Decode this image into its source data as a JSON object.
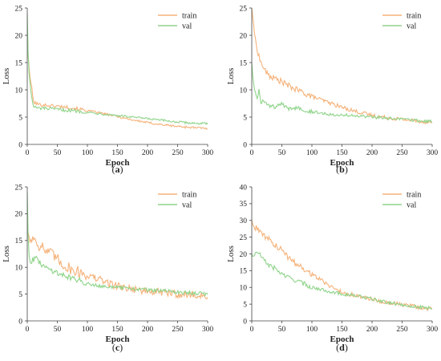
{
  "colors": {
    "train": "#f5b27a",
    "val": "#8fd48a",
    "axis": "#444444",
    "text": "#222222"
  },
  "chart_data": [
    {
      "type": "line",
      "caption": {
        "open": "(",
        "letter": "a",
        "close": ")"
      },
      "xlabel": "Epoch",
      "ylabel": "Loss",
      "xlim": [
        0,
        300
      ],
      "ylim": [
        0,
        25
      ],
      "xticks": [
        0,
        50,
        100,
        150,
        200,
        250,
        300
      ],
      "yticks": [
        0,
        5,
        10,
        15,
        20,
        25
      ],
      "grid": false,
      "legend_position": "top-right",
      "series": [
        {
          "name": "train",
          "x": [
            0,
            2,
            5,
            8,
            10,
            15,
            20,
            30,
            40,
            50,
            60,
            75,
            100,
            125,
            150,
            175,
            200,
            225,
            250,
            275,
            300
          ],
          "y": [
            21,
            15,
            12,
            10,
            7.8,
            7.5,
            7.3,
            7.2,
            7.1,
            7.0,
            6.9,
            6.7,
            6.2,
            5.7,
            5.1,
            4.5,
            4.0,
            3.6,
            3.3,
            3.1,
            2.9
          ]
        },
        {
          "name": "val",
          "x": [
            0,
            2,
            5,
            8,
            10,
            15,
            20,
            30,
            40,
            50,
            60,
            75,
            100,
            125,
            150,
            175,
            200,
            225,
            250,
            275,
            300
          ],
          "y": [
            24,
            14,
            11,
            8,
            7.0,
            6.7,
            6.6,
            6.6,
            6.5,
            6.4,
            6.3,
            6.2,
            5.9,
            5.6,
            5.3,
            5.0,
            4.7,
            4.4,
            4.1,
            3.9,
            3.8
          ]
        }
      ]
    },
    {
      "type": "line",
      "caption": {
        "open": "(",
        "letter": "b",
        "close": ")"
      },
      "xlabel": "Epoch",
      "ylabel": "Loss",
      "xlim": [
        0,
        300
      ],
      "ylim": [
        0,
        25
      ],
      "xticks": [
        0,
        50,
        100,
        150,
        200,
        250,
        300
      ],
      "yticks": [
        0,
        5,
        10,
        15,
        20,
        25
      ],
      "grid": false,
      "legend_position": "top-right",
      "series": [
        {
          "name": "train",
          "x": [
            0,
            3,
            6,
            10,
            15,
            20,
            25,
            30,
            40,
            50,
            60,
            75,
            100,
            125,
            150,
            175,
            200,
            225,
            250,
            275,
            300
          ],
          "y": [
            25,
            22,
            19,
            17,
            15,
            14,
            13,
            12.5,
            12,
            11.5,
            10.8,
            10,
            8.8,
            7.8,
            6.8,
            6.0,
            5.3,
            4.9,
            4.6,
            4.3,
            4.0
          ]
        },
        {
          "name": "val",
          "x": [
            0,
            2,
            4,
            6,
            8,
            10,
            12,
            15,
            20,
            25,
            30,
            40,
            50,
            60,
            75,
            100,
            125,
            150,
            175,
            200,
            225,
            250,
            275,
            300
          ],
          "y": [
            15,
            12,
            10.5,
            9.5,
            8.8,
            8.3,
            10.5,
            7.8,
            8.0,
            7.2,
            7.0,
            6.8,
            7.5,
            6.4,
            6.8,
            6.0,
            5.6,
            5.4,
            5.2,
            5.0,
            4.8,
            4.6,
            4.4,
            4.2
          ]
        }
      ]
    },
    {
      "type": "line",
      "caption": {
        "open": "(",
        "letter": "c",
        "close": ")"
      },
      "xlabel": "Epoch",
      "ylabel": "Loss",
      "xlim": [
        0,
        300
      ],
      "ylim": [
        0,
        25
      ],
      "xticks": [
        0,
        50,
        100,
        150,
        200,
        250,
        300
      ],
      "yticks": [
        0,
        5,
        10,
        15,
        20,
        25
      ],
      "grid": false,
      "legend_position": "top-right",
      "series": [
        {
          "name": "train",
          "x": [
            0,
            2,
            5,
            10,
            15,
            20,
            25,
            30,
            40,
            50,
            60,
            75,
            90,
            100,
            125,
            150,
            175,
            200,
            225,
            250,
            275,
            300
          ],
          "y": [
            18,
            16,
            15,
            15.5,
            15,
            14,
            14,
            13,
            12.5,
            11.5,
            10.5,
            9.5,
            9.0,
            8.5,
            7.5,
            6.5,
            6.0,
            5.5,
            5.3,
            5.0,
            4.8,
            4.6
          ]
        },
        {
          "name": "val",
          "x": [
            0,
            2,
            5,
            10,
            15,
            20,
            25,
            30,
            40,
            50,
            60,
            75,
            100,
            125,
            150,
            175,
            200,
            225,
            250,
            275,
            300
          ],
          "y": [
            24,
            13,
            11,
            11.5,
            11.8,
            10.8,
            10.5,
            10.0,
            9.5,
            9.0,
            8.5,
            8.0,
            7.0,
            6.5,
            6.2,
            6.0,
            5.8,
            5.6,
            5.4,
            5.2,
            5.0
          ]
        }
      ]
    },
    {
      "type": "line",
      "caption": {
        "open": "(",
        "letter": "d",
        "close": ")"
      },
      "xlabel": "Epoch",
      "ylabel": "Loss",
      "xlim": [
        0,
        300
      ],
      "ylim": [
        0,
        40
      ],
      "xticks": [
        0,
        50,
        100,
        150,
        200,
        250,
        300
      ],
      "yticks": [
        0,
        5,
        10,
        15,
        20,
        25,
        30,
        35,
        40
      ],
      "grid": false,
      "legend_position": "top-right",
      "series": [
        {
          "name": "train",
          "x": [
            0,
            2,
            5,
            10,
            15,
            20,
            30,
            40,
            50,
            60,
            75,
            100,
            125,
            150,
            175,
            200,
            225,
            250,
            275,
            300
          ],
          "y": [
            30,
            28.5,
            28,
            27.5,
            26,
            25.5,
            24,
            22.5,
            21,
            19,
            17,
            14,
            11,
            8.5,
            7.5,
            6.5,
            5.5,
            4.8,
            4.2,
            3.5
          ]
        },
        {
          "name": "val",
          "x": [
            0,
            2,
            5,
            10,
            15,
            20,
            30,
            40,
            50,
            60,
            75,
            100,
            125,
            150,
            175,
            200,
            225,
            250,
            275,
            300
          ],
          "y": [
            20,
            19,
            20,
            20.5,
            19.5,
            18,
            16.5,
            15.5,
            14,
            13,
            12,
            10,
            9,
            8,
            7.5,
            6.5,
            5.5,
            4.8,
            4.2,
            3.8
          ]
        }
      ]
    }
  ]
}
